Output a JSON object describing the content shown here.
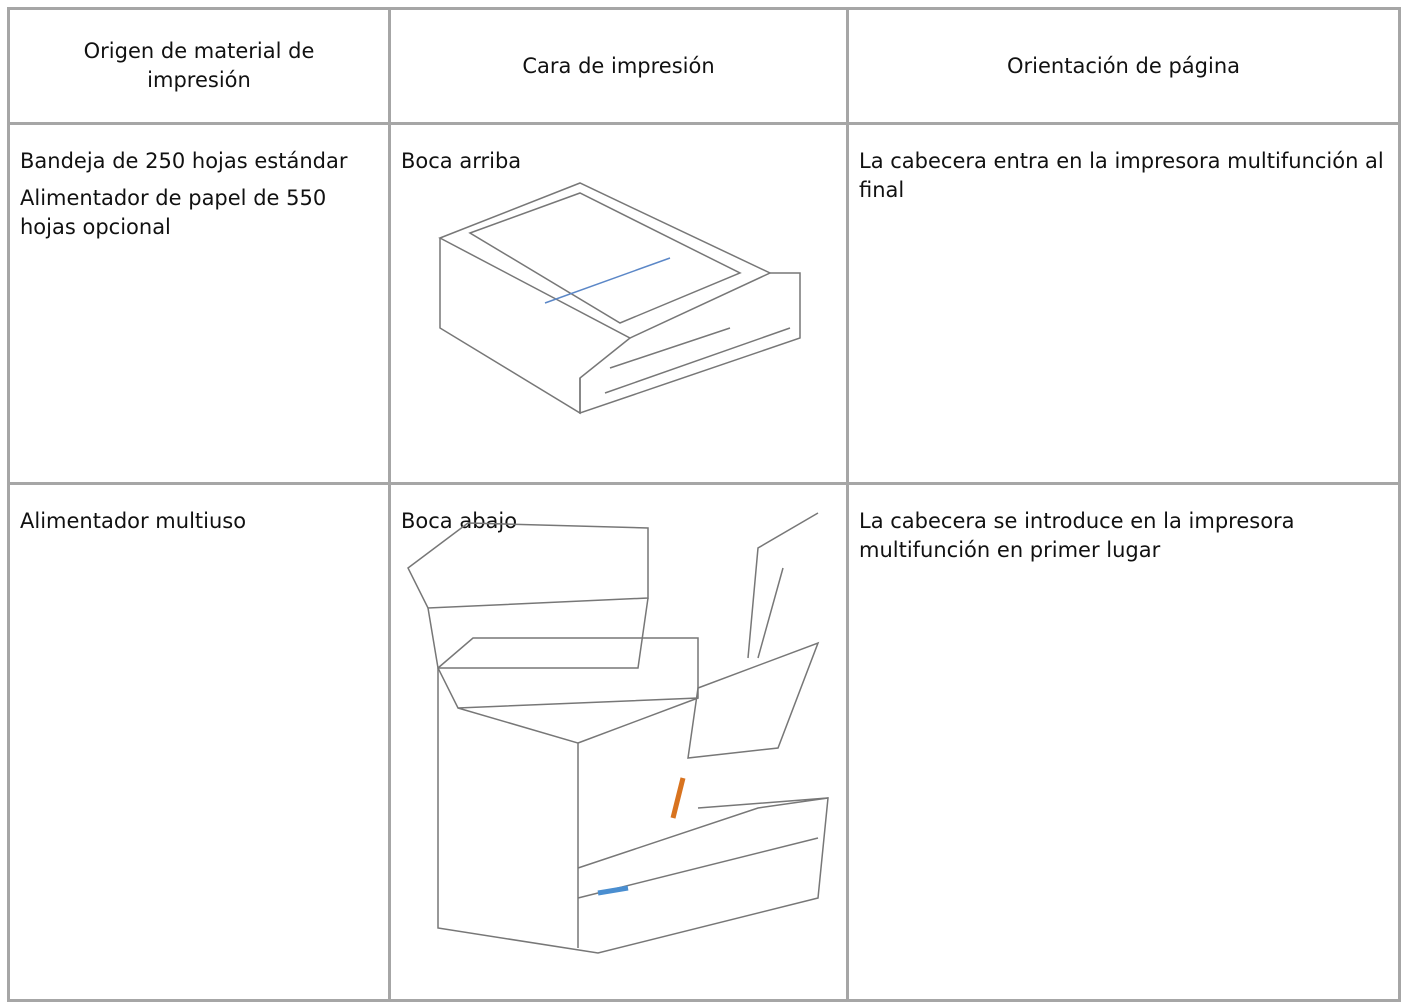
{
  "table": {
    "header": [
      "Origen de material de impresión",
      "Cara de impresión",
      "Orientación de página"
    ],
    "rows": [
      [
        [
          "Bandeja de 250 hojas estándar",
          "Alimentador de papel de 550 hojas opcional"
        ],
        [
          "Boca arriba"
        ],
        [
          "La cabecera entra en la impresora multifunción al final"
        ]
      ],
      [
        [
          "Alimentador multiuso"
        ],
        [
          "Boca abajo"
        ],
        [
          "La cabecera se introduce en la impresora multifunción en primer lugar"
        ]
      ]
    ]
  }
}
